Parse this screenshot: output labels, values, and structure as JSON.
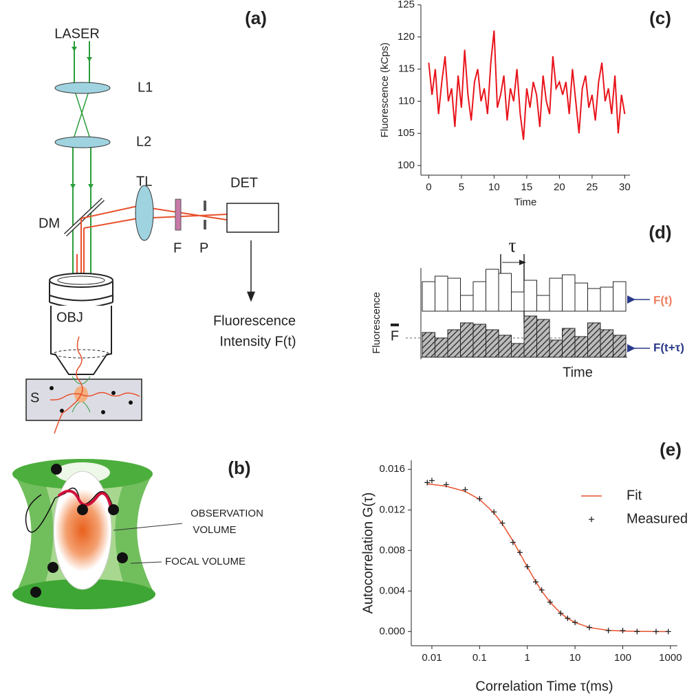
{
  "panels": {
    "a": {
      "label": "(a)",
      "laser": "LASER",
      "l1": "L1",
      "l2": "L2",
      "tl": "TL",
      "det": "DET",
      "dm": "DM",
      "f": "F",
      "p": "P",
      "obj": "OBJ",
      "s": "S",
      "output": [
        "Fluorescence",
        "Intensity F(t)"
      ]
    },
    "b": {
      "label": "(b)",
      "observation": [
        "OBSERVATION",
        "VOLUME"
      ],
      "focal": "FOCAL VOLUME"
    },
    "d": {
      "label": "(d)",
      "tau": "τ",
      "y_label": "Fluorescence",
      "mean": "F",
      "top": "F(t)",
      "bottom": "F(t+τ)",
      "x_label": "Time"
    }
  },
  "chart_data": [
    {
      "type": "line",
      "panel_label": "(c)",
      "x_label": "Time",
      "y_label": "Fluorescence (kCps)",
      "color": "#e8141b",
      "x": [
        0,
        0.5,
        1,
        1.5,
        2,
        2.5,
        3,
        3.5,
        4,
        4.5,
        5,
        5.5,
        6,
        6.5,
        7,
        7.5,
        8,
        8.5,
        9,
        9.5,
        10,
        10.5,
        11,
        11.5,
        12,
        12.5,
        13,
        13.5,
        14,
        14.5,
        15,
        15.5,
        16,
        16.5,
        17,
        17.5,
        18,
        18.5,
        19,
        19.5,
        20,
        20.5,
        21,
        21.5,
        22,
        22.5,
        23,
        23.5,
        24,
        24.5,
        25,
        25.5,
        26,
        26.5,
        27,
        27.5,
        28,
        28.5,
        29,
        29.5,
        30
      ],
      "values": [
        116,
        111,
        115,
        108,
        113,
        117,
        110,
        112,
        106,
        114,
        109,
        118,
        111,
        107,
        113,
        115,
        110,
        112,
        108,
        116,
        121,
        109,
        111,
        114,
        107,
        112,
        110,
        115,
        108,
        104,
        112,
        109,
        113,
        111,
        106,
        114,
        110,
        108,
        117,
        112,
        113,
        111,
        113,
        108,
        115,
        110,
        105,
        112,
        114,
        109,
        111,
        107,
        113,
        116,
        110,
        112,
        108,
        114,
        105,
        111,
        108
      ],
      "xlim": [
        -1.2,
        30.8
      ],
      "xticks": [
        0,
        5,
        10,
        15,
        20,
        25,
        30
      ],
      "ylim": [
        98.5,
        125
      ],
      "yticks": [
        100,
        105,
        110,
        115,
        120,
        125
      ]
    },
    {
      "type": "line-scatter",
      "panel_label": "(e)",
      "x_label": "Correlation Time τ(ms)",
      "y_label": "Autocorrelation G(τ)",
      "log_x": true,
      "x": [
        0.008,
        0.01,
        0.02,
        0.05,
        0.1,
        0.2,
        0.3,
        0.5,
        0.7,
        1,
        1.5,
        2,
        3,
        5,
        7,
        10,
        20,
        50,
        100,
        200,
        500,
        900
      ],
      "series": [
        {
          "name": "Fit",
          "color": "#e8502c",
          "values": [
            0.01455,
            0.01452,
            0.01434,
            0.01382,
            0.01304,
            0.0117,
            0.01061,
            0.00894,
            0.00771,
            0.00638,
            0.00493,
            0.004,
            0.00289,
            0.00181,
            0.0013,
            0.00089,
            0.0004,
            0.00012,
            5e-05,
            2e-05,
            0,
            0
          ]
        },
        {
          "name": "Measured",
          "color": "#222222",
          "values": [
            0.0147,
            0.0149,
            0.0145,
            0.014,
            0.0131,
            0.0118,
            0.0107,
            0.0088,
            0.0078,
            0.0064,
            0.0049,
            0.0041,
            0.0029,
            0.0018,
            0.0013,
            0.0009,
            0.0004,
            0.0001,
            0.0001,
            0,
            0,
            0
          ]
        }
      ],
      "xlim": [
        0.0037,
        1400
      ],
      "xticks": [
        0.01,
        0.1,
        1,
        10,
        100,
        1000
      ],
      "ylim": [
        -0.0014,
        0.0169
      ],
      "yticks": [
        {
          "value": 0,
          "label": "0.000"
        },
        {
          "value": 0.004,
          "label": "0.004"
        },
        {
          "value": 0.008,
          "label": "0.008"
        },
        {
          "value": 0.012,
          "label": "0.012"
        },
        {
          "value": 0.016,
          "label": "0.016"
        }
      ],
      "legend": "right"
    }
  ]
}
